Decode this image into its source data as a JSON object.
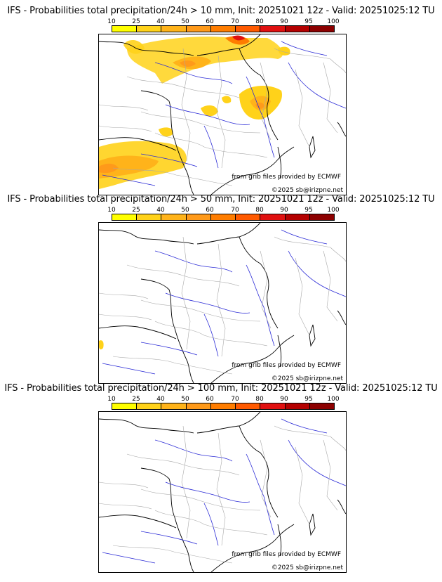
{
  "colorbar": {
    "ticks": [
      "10",
      "25",
      "40",
      "50",
      "60",
      "70",
      "80",
      "90",
      "95",
      "100"
    ],
    "colors": [
      "#ffff00",
      "#ffd21a",
      "#ffb31a",
      "#ff9a1a",
      "#ff7d00",
      "#ff5a00",
      "#e01010",
      "#b40000",
      "#8c0000",
      "#5a0000"
    ]
  },
  "credit": "from grib files provided by ECMWF",
  "copyright": "©2025 sb@irizpne.net",
  "panels": [
    {
      "title": "IFS - Probabilities total precipitation/24h > 10 mm, Init: 20251021 12z - Valid: 20251025:12 TU",
      "threshold_mm": 10
    },
    {
      "title": "IFS - Probabilities total precipitation/24h > 50 mm, Init: 20251021 12z - Valid: 20251025:12 TU",
      "threshold_mm": 50
    },
    {
      "title": "IFS - Probabilities total precipitation/24h > 100 mm, Init: 20251021 12z - Valid: 20251025:12 TU",
      "threshold_mm": 100
    }
  ]
}
